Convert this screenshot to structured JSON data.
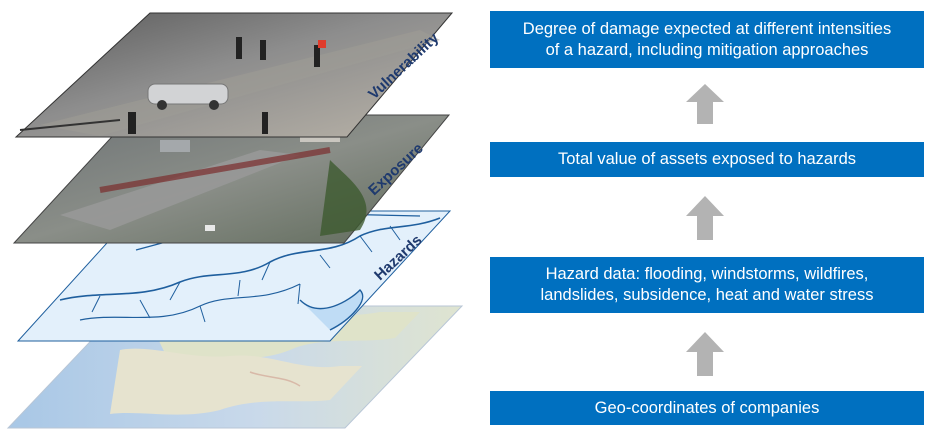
{
  "layers": [
    {
      "id": "vulnerability",
      "label": "Vulnerability"
    },
    {
      "id": "exposure",
      "label": "Exposure"
    },
    {
      "id": "hazards",
      "label": "Hazards"
    },
    {
      "id": "basemap",
      "label": ""
    }
  ],
  "boxes": {
    "vulnerability": "Degree of damage expected at different intensities\nof a hazard, including mitigation approaches",
    "exposure": "Total value of assets exposed to hazards",
    "hazards": "Hazard data: flooding, windstorms, wildfires,\nlandslides, subsidence, heat and water stress",
    "geo": "Geo-coordinates of companies"
  },
  "colors": {
    "box_fill": "#0070c0",
    "box_text": "#ffffff",
    "arrow": "#b3b3b3",
    "layer_label": "#1f3a6e",
    "water_lines": "#1f5f9e"
  },
  "icons": {
    "arrow": "up-arrow-icon"
  }
}
